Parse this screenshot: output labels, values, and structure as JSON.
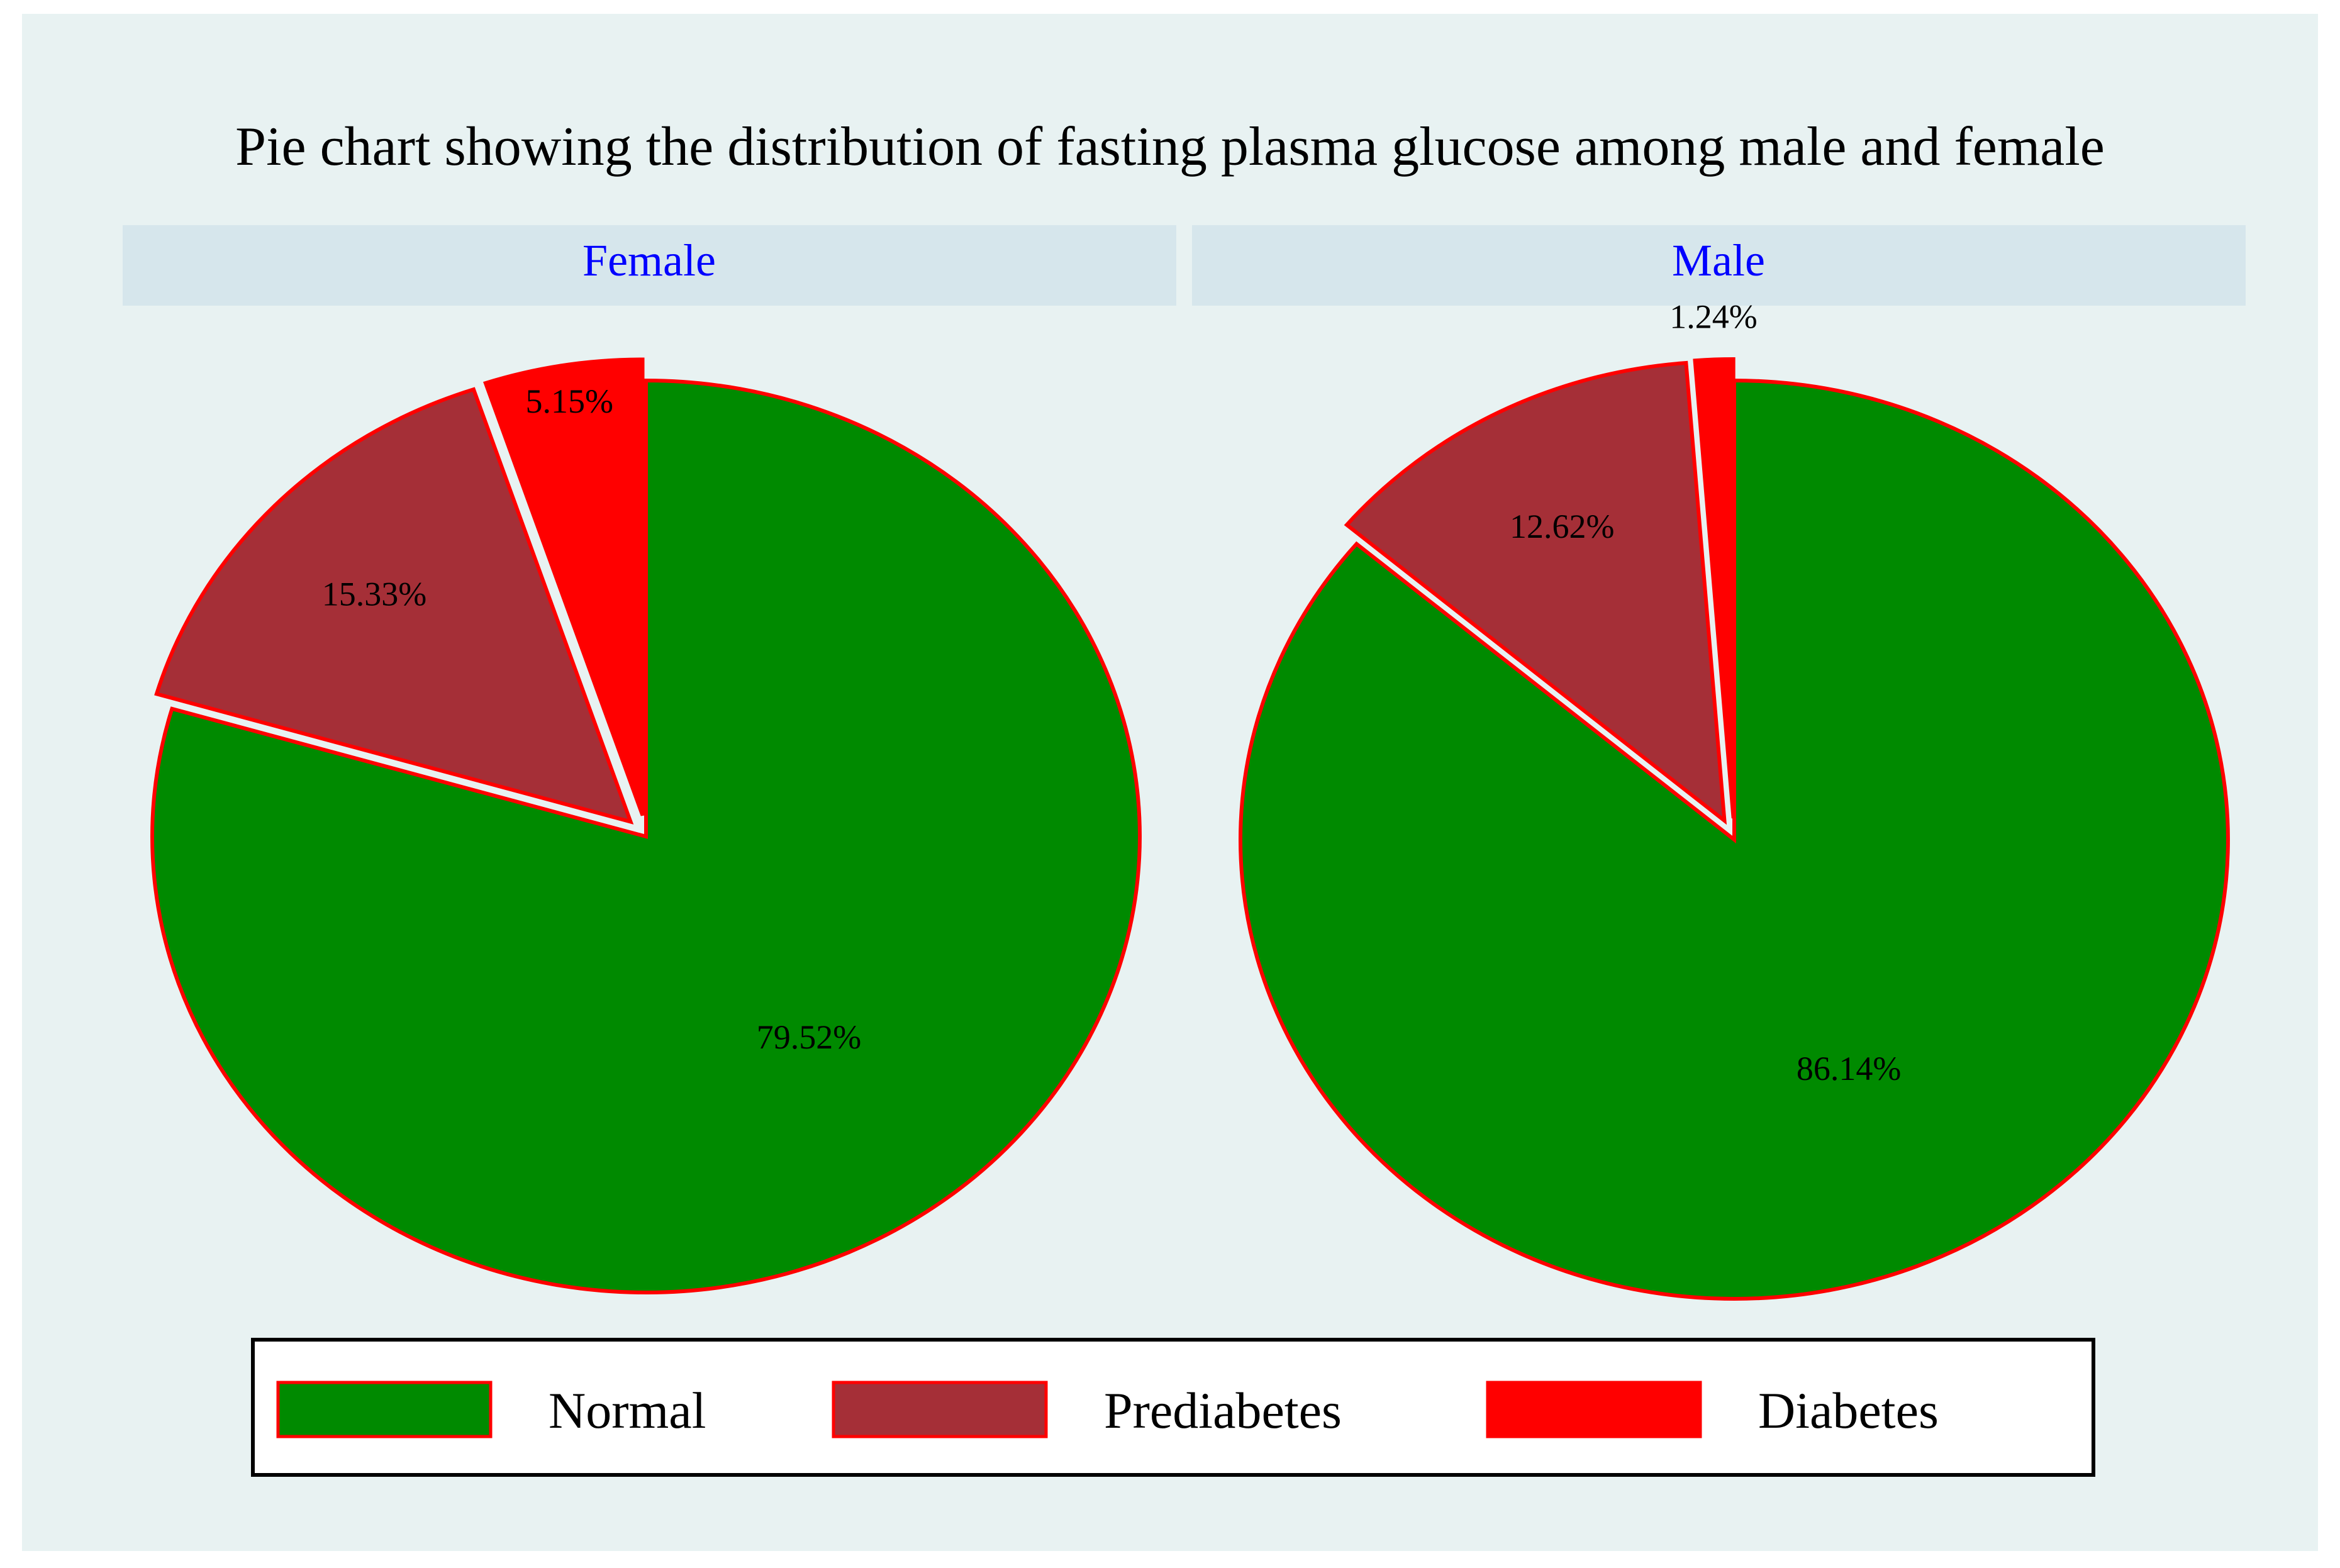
{
  "colors": {
    "outer_background": "#e8f2f2",
    "panel_header": "#d6e6ec",
    "panel_header_text": "#0000ff",
    "slice_outline": "#ff0000",
    "normal": "#008a00",
    "prediabetes": "#a52f37",
    "diabetes": "#ff0000"
  },
  "chart_data": {
    "type": "pie",
    "title": "Pie chart showing the distribution of fasting plasma glucose among male and female",
    "legend": {
      "placement": "bottom",
      "entries": [
        {
          "label": "Normal",
          "color": "#008a00"
        },
        {
          "label": "Prediabetes",
          "color": "#a52f37"
        },
        {
          "label": "Diabetes",
          "color": "#ff0000"
        }
      ]
    },
    "panels": [
      {
        "name": "Female",
        "slices": [
          {
            "category": "Normal",
            "value": 79.52,
            "label": "79.52%",
            "exploded": false
          },
          {
            "category": "Prediabetes",
            "value": 15.33,
            "label": "15.33%",
            "exploded": true
          },
          {
            "category": "Diabetes",
            "value": 5.15,
            "label": "5.15%",
            "exploded": true
          }
        ]
      },
      {
        "name": "Male",
        "slices": [
          {
            "category": "Normal",
            "value": 86.14,
            "label": "86.14%",
            "exploded": false
          },
          {
            "category": "Prediabetes",
            "value": 12.62,
            "label": "12.62%",
            "exploded": true
          },
          {
            "category": "Diabetes",
            "value": 1.24,
            "label": "1.24%",
            "exploded": true
          }
        ]
      }
    ]
  }
}
